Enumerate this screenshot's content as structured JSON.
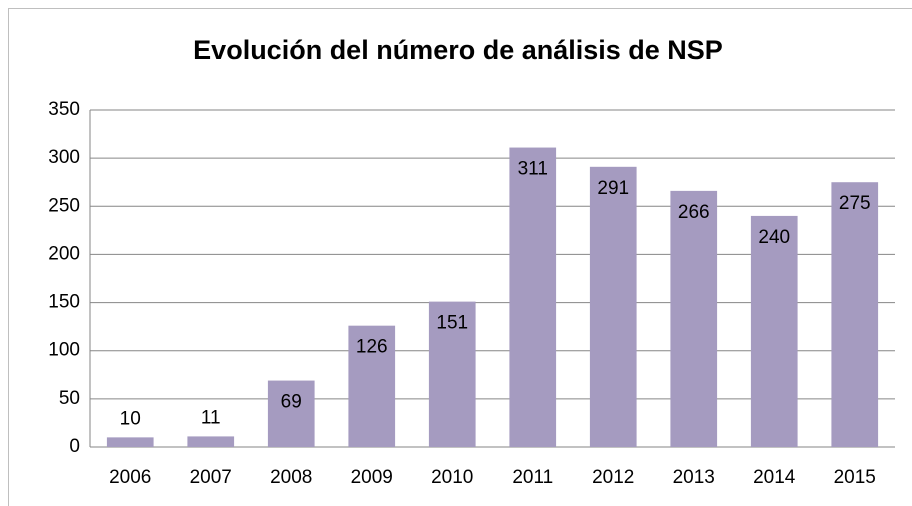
{
  "chart_data": {
    "type": "bar",
    "title": "Evolución del número de análisis de NSP",
    "categories": [
      "2006",
      "2007",
      "2008",
      "2009",
      "2010",
      "2011",
      "2012",
      "2013",
      "2014",
      "2015"
    ],
    "values": [
      10,
      11,
      69,
      126,
      151,
      311,
      291,
      266,
      240,
      275
    ],
    "color": "#a59bc0",
    "ylim": [
      0,
      350
    ],
    "yticks": [
      0,
      50,
      100,
      150,
      200,
      250,
      300,
      350
    ],
    "grid": true
  }
}
